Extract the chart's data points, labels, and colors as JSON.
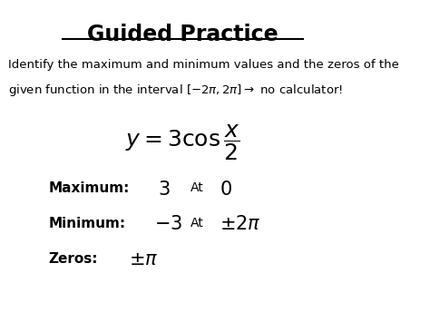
{
  "title": "Guided Practice",
  "background_color": "#ffffff",
  "text_color": "#000000",
  "line1": "Identify the maximum and minimum values and the zeros of the",
  "line2": "given function in the interval $\\left[-2\\pi, 2\\pi\\right] \\rightarrow$ no calculator!",
  "equation": "$y = 3\\cos\\dfrac{x}{2}$",
  "maximum_label": "Maximum:",
  "maximum_value": "$3$",
  "maximum_at": "At",
  "maximum_location": "$0$",
  "minimum_label": "Minimum:",
  "minimum_value": "$-3$",
  "minimum_at": "At",
  "minimum_location": "$\\pm 2\\pi$",
  "zeros_label": "Zeros:",
  "zeros_value": "$\\pm\\pi$"
}
